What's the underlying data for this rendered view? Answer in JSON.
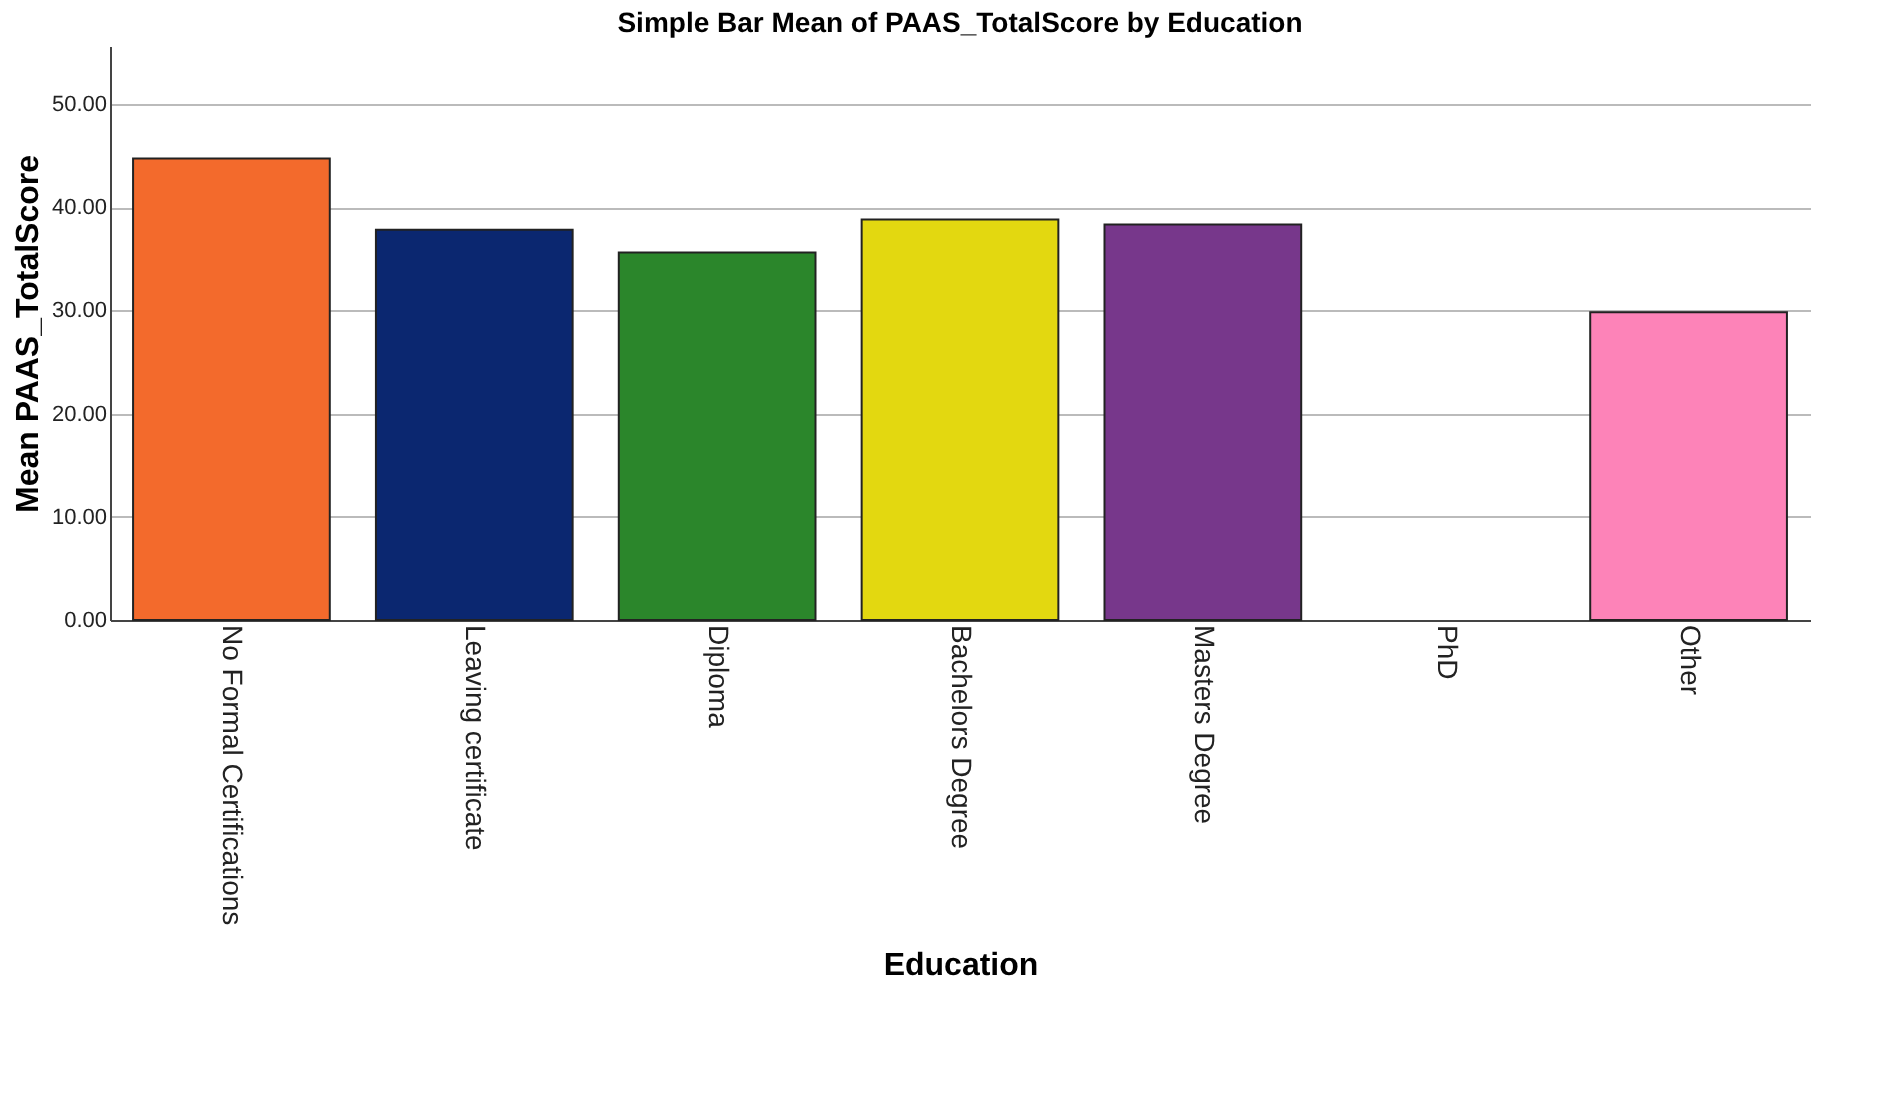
{
  "chart_data": {
    "type": "bar",
    "title": "Simple Bar Mean of PAAS_TotalScore by Education",
    "xlabel": "Education",
    "ylabel": "Mean PAAS_TotalScore",
    "categories": [
      "No Formal Certifications",
      "Leaving certificate",
      "Diploma",
      "Bachelors Degree",
      "Masters Degree",
      "PhD",
      "Other"
    ],
    "values": [
      44.7,
      37.8,
      35.6,
      38.8,
      38.3,
      null,
      29.8
    ],
    "colors": [
      "#f36a2c",
      "#0b2770",
      "#2b862b",
      "#e3d810",
      "#77378b",
      "#cccccc",
      "#fd83b8"
    ],
    "ylim": [
      0,
      55.6
    ],
    "yticks": [
      {
        "value": 0,
        "label": "0.00"
      },
      {
        "value": 10,
        "label": "10.00"
      },
      {
        "value": 20,
        "label": "20.00"
      },
      {
        "value": 30,
        "label": "30.00"
      },
      {
        "value": 40,
        "label": "40.00"
      },
      {
        "value": 50,
        "label": "50.00"
      }
    ],
    "grid": "y",
    "legend": false
  }
}
